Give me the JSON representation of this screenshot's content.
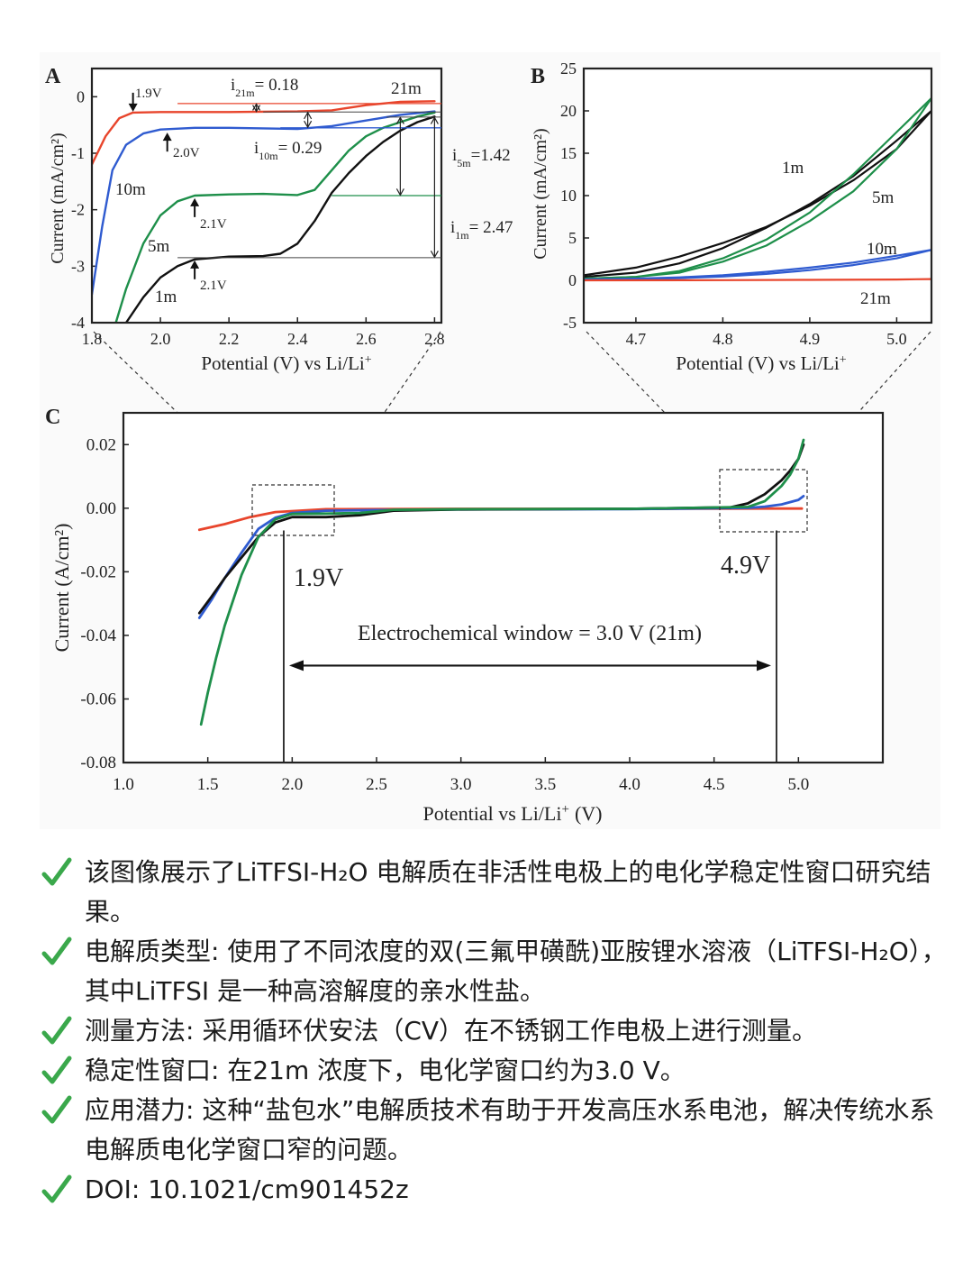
{
  "colors": {
    "c1m": "#111111",
    "c5m": "#1e8f4a",
    "c10m": "#2f5bd0",
    "c21m": "#e8452c",
    "check": "#3aa84b"
  },
  "chart_data": [
    {
      "panel": "A",
      "type": "line",
      "xlabel": "Potential (V) vs Li/Li",
      "ylabel": "Current (mA/cm²)",
      "xlim": [
        1.8,
        2.82
      ],
      "ylim": [
        -4,
        0.5
      ],
      "xticks": [
        1.8,
        2.0,
        2.2,
        2.4,
        2.6,
        2.8
      ],
      "yticks": [
        0,
        -1,
        -2,
        -3,
        -4
      ],
      "series": [
        {
          "name": "21m",
          "key": "c21m",
          "x": [
            1.8,
            1.84,
            1.88,
            1.92,
            2.0,
            2.2,
            2.4,
            2.5,
            2.6,
            2.7,
            2.8
          ],
          "y": [
            -1.2,
            -0.7,
            -0.38,
            -0.28,
            -0.27,
            -0.27,
            -0.26,
            -0.24,
            -0.15,
            -0.09,
            -0.08
          ]
        },
        {
          "name": "10m",
          "key": "c10m",
          "x": [
            1.8,
            1.83,
            1.86,
            1.9,
            1.95,
            2.0,
            2.1,
            2.2,
            2.3,
            2.4,
            2.5,
            2.6,
            2.7,
            2.8
          ],
          "y": [
            -3.5,
            -2.3,
            -1.3,
            -0.85,
            -0.65,
            -0.58,
            -0.55,
            -0.55,
            -0.56,
            -0.57,
            -0.52,
            -0.42,
            -0.32,
            -0.26
          ]
        },
        {
          "name": "5m",
          "key": "c5m",
          "x": [
            1.87,
            1.9,
            1.95,
            2.0,
            2.05,
            2.1,
            2.2,
            2.3,
            2.4,
            2.45,
            2.5,
            2.55,
            2.6,
            2.65,
            2.7,
            2.75,
            2.8
          ],
          "y": [
            -4.0,
            -3.4,
            -2.6,
            -2.1,
            -1.85,
            -1.75,
            -1.73,
            -1.72,
            -1.74,
            -1.65,
            -1.3,
            -0.95,
            -0.7,
            -0.55,
            -0.45,
            -0.35,
            -0.28
          ]
        },
        {
          "name": "1m",
          "key": "c1m",
          "x": [
            1.9,
            1.95,
            2.0,
            2.05,
            2.1,
            2.2,
            2.3,
            2.35,
            2.4,
            2.45,
            2.5,
            2.55,
            2.6,
            2.65,
            2.7,
            2.75,
            2.8
          ],
          "y": [
            -4.0,
            -3.55,
            -3.2,
            -3.0,
            -2.88,
            -2.83,
            -2.82,
            -2.78,
            -2.6,
            -2.2,
            -1.7,
            -1.35,
            -1.05,
            -0.8,
            -0.6,
            -0.45,
            -0.35
          ]
        }
      ],
      "labels": {
        "v19": "1.9V",
        "v20": "2.0V",
        "v21a": "2.1V",
        "v21b": "2.1V",
        "s21": "21m",
        "s10": "10m",
        "s5": "5m",
        "s1": "1m"
      },
      "annotations": {
        "i21_base": "i",
        "i21_sub": "21m",
        "i21_val": "= 0.18",
        "i10_base": "i",
        "i10_sub": "10m",
        "i10_val": "= 0.29",
        "i5_base": "i",
        "i5_sub": "5m",
        "i5_val": "=1.42",
        "i1_base": "i",
        "i1_sub": "1m",
        "i1_val": "= 2.47"
      }
    },
    {
      "panel": "B",
      "type": "line",
      "xlabel": "Potential (V) vs Li/Li",
      "ylabel": "Current (mA/cm²)",
      "xlim": [
        4.64,
        5.04
      ],
      "ylim": [
        -5,
        25
      ],
      "xticks": [
        4.7,
        4.8,
        4.9,
        5.0
      ],
      "yticks": [
        25,
        20,
        15,
        10,
        5,
        0,
        -5
      ],
      "series": [
        {
          "name": "1m",
          "key": "c1m",
          "x": [
            4.64,
            4.7,
            4.75,
            4.8,
            4.85,
            4.9,
            4.95,
            5.0,
            5.04
          ],
          "y": [
            0.6,
            1.5,
            2.8,
            4.4,
            6.3,
            8.8,
            11.8,
            15.5,
            20.0
          ]
        },
        {
          "name": "1m-return",
          "key": "c1m",
          "x": [
            5.04,
            5.0,
            4.95,
            4.9,
            4.85,
            4.8,
            4.75,
            4.7,
            4.64
          ],
          "y": [
            20.0,
            16.5,
            12.3,
            9.0,
            6.2,
            3.8,
            2.0,
            0.9,
            0.4
          ]
        },
        {
          "name": "5m",
          "key": "c5m",
          "x": [
            4.64,
            4.7,
            4.75,
            4.8,
            4.85,
            4.9,
            4.95,
            5.0,
            5.04
          ],
          "y": [
            0.2,
            0.4,
            0.9,
            2.2,
            4.1,
            7.0,
            10.5,
            15.5,
            21.5
          ]
        },
        {
          "name": "5m-return",
          "key": "c5m",
          "x": [
            5.04,
            5.0,
            4.95,
            4.9,
            4.85,
            4.8,
            4.75,
            4.7,
            4.64
          ],
          "y": [
            21.5,
            17.5,
            12.5,
            8.0,
            4.8,
            2.6,
            1.1,
            0.4,
            0.2
          ]
        },
        {
          "name": "10m",
          "key": "c10m",
          "x": [
            4.64,
            4.7,
            4.75,
            4.8,
            4.85,
            4.9,
            4.95,
            5.0,
            5.04
          ],
          "y": [
            0.1,
            0.15,
            0.25,
            0.45,
            0.75,
            1.2,
            1.8,
            2.6,
            3.6
          ]
        },
        {
          "name": "10m-return",
          "key": "c10m",
          "x": [
            5.04,
            5.0,
            4.95,
            4.9,
            4.85,
            4.8,
            4.75,
            4.7,
            4.64
          ],
          "y": [
            3.6,
            2.9,
            2.1,
            1.5,
            1.0,
            0.6,
            0.35,
            0.2,
            0.1
          ]
        },
        {
          "name": "21m",
          "key": "c21m",
          "x": [
            4.64,
            4.8,
            4.9,
            5.0,
            5.04
          ],
          "y": [
            0.0,
            0.02,
            0.05,
            0.1,
            0.15
          ]
        }
      ],
      "labels": {
        "s1": "1m",
        "s5": "5m",
        "s10": "10m",
        "s21": "21m"
      }
    },
    {
      "panel": "C",
      "type": "line",
      "xlabel": "Potential vs Li/Li",
      "xlabel_tail": "(V)",
      "ylabel": "Current (A/cm²)",
      "xlim": [
        1.0,
        5.5
      ],
      "ylim": [
        -0.08,
        0.03
      ],
      "xticks": [
        1.0,
        1.5,
        2.0,
        2.5,
        3.0,
        3.5,
        4.0,
        4.5,
        5.0
      ],
      "yticks": [
        0.02,
        0.0,
        -0.02,
        -0.04,
        -0.06,
        -0.08
      ],
      "series": [
        {
          "name": "21m",
          "key": "c21m",
          "x": [
            1.45,
            1.6,
            1.75,
            1.9,
            2.2,
            3.0,
            4.0,
            4.9,
            5.02
          ],
          "y": [
            -0.0068,
            -0.005,
            -0.0028,
            -0.0012,
            -0.0003,
            -0.0002,
            -0.0002,
            -0.0001,
            -0.0001
          ]
        },
        {
          "name": "10m",
          "key": "c10m",
          "x": [
            1.45,
            1.52,
            1.6,
            1.7,
            1.8,
            1.9,
            2.0,
            2.2,
            2.5,
            3.0,
            4.0,
            4.7,
            4.8,
            4.9,
            5.0,
            5.03
          ],
          "y": [
            -0.0345,
            -0.029,
            -0.022,
            -0.014,
            -0.0065,
            -0.003,
            -0.0015,
            -0.0008,
            -0.0006,
            -0.0004,
            -0.0003,
            0.0001,
            0.0005,
            0.0012,
            0.0026,
            0.0038
          ]
        },
        {
          "name": "1m",
          "key": "c1m",
          "x": [
            1.45,
            1.52,
            1.6,
            1.7,
            1.8,
            1.9,
            2.0,
            2.2,
            2.4,
            2.6,
            3.0,
            4.0,
            4.6,
            4.7,
            4.8,
            4.9,
            4.95,
            5.0,
            5.03
          ],
          "y": [
            -0.033,
            -0.028,
            -0.022,
            -0.0155,
            -0.009,
            -0.0045,
            -0.0028,
            -0.0028,
            -0.0022,
            -0.0008,
            -0.0004,
            -0.0002,
            0.0003,
            0.0015,
            0.0044,
            0.0088,
            0.0118,
            0.0155,
            0.02
          ]
        },
        {
          "name": "5m",
          "key": "c5m",
          "x": [
            1.46,
            1.5,
            1.55,
            1.6,
            1.7,
            1.8,
            1.9,
            2.0,
            2.2,
            2.4,
            2.6,
            3.0,
            4.0,
            4.7,
            4.8,
            4.9,
            4.95,
            5.0,
            5.03
          ],
          "y": [
            -0.068,
            -0.058,
            -0.047,
            -0.037,
            -0.021,
            -0.009,
            -0.0035,
            -0.0018,
            -0.0017,
            -0.0015,
            -0.0005,
            -0.0003,
            -0.0002,
            0.0004,
            0.0022,
            0.007,
            0.0105,
            0.0155,
            0.0215
          ]
        }
      ],
      "labels": {
        "v19": "1.9V",
        "v49": "4.9V",
        "window": "Electrochemical window = 3.0 V (21m)"
      },
      "markers": {
        "low_v": 1.95,
        "high_v": 4.87,
        "arrow_y": -0.0495
      }
    }
  ],
  "panels": {
    "a": "A",
    "b": "B",
    "c": "C"
  },
  "bullets": [
    "该图像展示了LiTFSI-H₂O 电解质在非活性电极上的电化学稳定性窗口研究结果。",
    "电解质类型: 使用了不同浓度的双(三氟甲磺酰)亚胺锂水溶液（LiTFSI-H₂O），其中LiTFSI 是一种高溶解度的亲水性盐。",
    "测量方法: 采用循环伏安法（CV）在不锈钢工作电极上进行测量。",
    "稳定性窗口: 在21m 浓度下，电化学窗口约为3.0 V。",
    "应用潜力: 这种“盐包水”电解质技术有助于开发高压水系电池，解决传统水系电解质电化学窗口窄的问题。",
    "DOI:   10.1021/cm901452z"
  ]
}
